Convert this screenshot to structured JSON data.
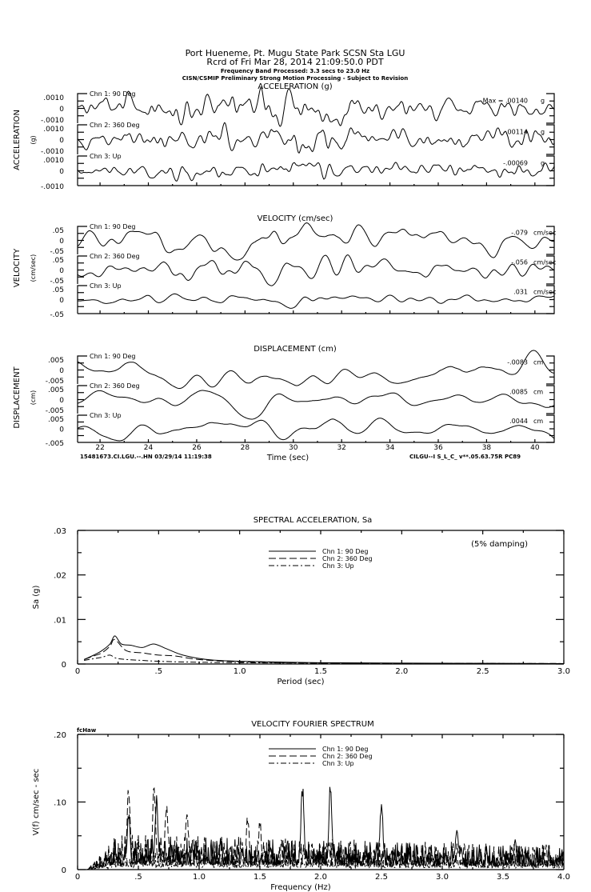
{
  "header": {
    "line1": "Port Hueneme, Pt. Mugu State Park    SCSN Sta LGU",
    "line2": "Rcrd of Fri Mar 28, 2014 21:09:50.0 PDT",
    "line3": "Frequency Band Processed: 3.3 secs to 23.0 Hz",
    "line4": "CISN/CSMIP Preliminary Strong Motion Processing - Subject to Revision"
  },
  "time_series": {
    "x_ticks": [
      "22",
      "24",
      "26",
      "28",
      "30",
      "32",
      "34",
      "36",
      "38",
      "40"
    ],
    "x_tick_values": [
      22,
      24,
      26,
      28,
      30,
      32,
      34,
      36,
      38,
      40
    ],
    "x_range": [
      21.07,
      40.8
    ],
    "xlabel": "Time (sec)",
    "footer_left": "15481673.CI.LGU.--.HN 03/29/14 11:19:38",
    "footer_right": "CILGU--I  S_L_C_  v**.05.63.75R PC89",
    "panels": [
      {
        "title": "ACCELERATION (g)",
        "side_label": "ACCELERATION",
        "unit_label": "(g)",
        "ticks": {
          "pos": ".0010",
          "zero": "0",
          "neg": "-.0010"
        },
        "full_scale": 0.001,
        "smooth": 2,
        "channels": [
          {
            "label": "Chn 1: 90 Deg",
            "peak_text": "Max = .00140",
            "peak": 0.0014,
            "unit": "g"
          },
          {
            "label": "Chn 2: 360 Deg",
            "peak_text": "-.00114",
            "peak": 0.00114,
            "unit": "g"
          },
          {
            "label": "Chn 3: Up",
            "peak_text": "-.00069",
            "peak": 0.00069,
            "unit": "g"
          }
        ]
      },
      {
        "title": "VELOCITY (cm/sec)",
        "side_label": "VELOCITY",
        "unit_label": "(cm/sec)",
        "ticks": {
          "pos": ".05",
          "zero": "0",
          "neg": "-.05"
        },
        "full_scale": 0.05,
        "smooth": 5,
        "channels": [
          {
            "label": "Chn 1: 90 Deg",
            "peak_text": "-.079",
            "peak": 0.079,
            "unit": "cm/sec"
          },
          {
            "label": "Chn 2: 360 Deg",
            "peak_text": "-.056",
            "peak": 0.056,
            "unit": "cm/sec"
          },
          {
            "label": "Chn 3: Up",
            "peak_text": ".031",
            "peak": 0.031,
            "unit": "cm/sec"
          }
        ]
      },
      {
        "title": "DISPLACEMENT (cm)",
        "side_label": "DISPLACEMENT",
        "unit_label": "(cm)",
        "ticks": {
          "pos": ".005",
          "zero": "0",
          "neg": "-.005"
        },
        "full_scale": 0.005,
        "smooth": 10,
        "channels": [
          {
            "label": "Chn 1: 90 Deg",
            "peak_text": "-.0083",
            "peak": 0.0083,
            "unit": "cm"
          },
          {
            "label": "Chn 2: 360 Deg",
            "peak_text": ".0085",
            "peak": 0.0085,
            "unit": "cm"
          },
          {
            "label": "Chn 3: Up",
            "peak_text": ".0044",
            "peak": 0.0044,
            "unit": "cm"
          }
        ]
      }
    ]
  },
  "chart_data": [
    {
      "type": "line",
      "title": "SPECTRAL ACCELERATION, Sa",
      "annotation": "(5% damping)",
      "xlabel": "Period (sec)",
      "ylabel": "Sa (g)",
      "xlim": [
        0,
        3.0
      ],
      "ylim": [
        0,
        0.03
      ],
      "x_ticks": [
        0,
        0.5,
        1.0,
        1.5,
        2.0,
        2.5,
        3.0
      ],
      "x_tick_labels": [
        "0",
        ".5",
        "1.0",
        "1.5",
        "2.0",
        "2.5",
        "3.0"
      ],
      "y_ticks": [
        0,
        0.01,
        0.02,
        0.03
      ],
      "y_tick_labels": [
        "0",
        ".01",
        ".02",
        ".03"
      ],
      "legend_position": "top-center",
      "series": [
        {
          "name": "Chn 1: 90 Deg",
          "style": "solid",
          "x": [
            0.04,
            0.1,
            0.15,
            0.2,
            0.23,
            0.27,
            0.33,
            0.4,
            0.47,
            0.55,
            0.65,
            0.8,
            1.0,
            1.5,
            2.0,
            2.5,
            3.0
          ],
          "y": [
            0.001,
            0.002,
            0.003,
            0.0045,
            0.0063,
            0.0045,
            0.0042,
            0.0037,
            0.0045,
            0.0034,
            0.002,
            0.001,
            0.0006,
            0.0003,
            0.0002,
            0.00015,
            0.0001
          ]
        },
        {
          "name": "Chn 2: 360 Deg",
          "style": "dashed",
          "x": [
            0.04,
            0.1,
            0.15,
            0.2,
            0.23,
            0.3,
            0.4,
            0.5,
            0.6,
            0.75,
            1.0,
            1.5,
            2.0,
            3.0
          ],
          "y": [
            0.001,
            0.0018,
            0.0025,
            0.004,
            0.0055,
            0.003,
            0.0025,
            0.002,
            0.0018,
            0.001,
            0.0005,
            0.0002,
            0.00015,
            0.0001
          ]
        },
        {
          "name": "Chn 3: Up",
          "style": "dash-dot",
          "x": [
            0.04,
            0.1,
            0.15,
            0.2,
            0.25,
            0.4,
            0.6,
            1.0,
            1.5,
            3.0
          ],
          "y": [
            0.0008,
            0.0012,
            0.0015,
            0.002,
            0.0012,
            0.0008,
            0.0005,
            0.0003,
            0.0002,
            0.0001
          ]
        }
      ]
    },
    {
      "type": "line",
      "title": "VELOCITY FOURIER SPECTRUM",
      "corner_label": "fcHaw",
      "xlabel": "Frequency (Hz)",
      "ylabel": "V(f)    cm/sec - sec",
      "xlim": [
        0,
        4.0
      ],
      "ylim": [
        0,
        0.2
      ],
      "x_ticks": [
        0,
        0.5,
        1.0,
        1.5,
        2.0,
        2.5,
        3.0,
        3.5,
        4.0
      ],
      "x_tick_labels": [
        "0",
        ".5",
        "1.0",
        "1.5",
        "2.0",
        "2.5",
        "3.0",
        "3.5",
        "4.0"
      ],
      "y_ticks": [
        0,
        0.1,
        0.2
      ],
      "y_tick_labels": [
        "0",
        ".10",
        ".20"
      ],
      "legend_position": "top-center",
      "series": [
        {
          "name": "Chn 1: 90 Deg",
          "style": "solid",
          "base_level": 0.03,
          "peaks": [
            [
              0.42,
              0.09
            ],
            [
              0.65,
              0.11
            ],
            [
              1.85,
              0.135
            ],
            [
              2.08,
              0.138
            ],
            [
              2.5,
              0.11
            ],
            [
              3.12,
              0.068
            ],
            [
              3.6,
              0.045
            ]
          ]
        },
        {
          "name": "Chn 2: 360 Deg",
          "style": "dashed",
          "base_level": 0.032,
          "peaks": [
            [
              0.42,
              0.13
            ],
            [
              0.63,
              0.135
            ],
            [
              0.73,
              0.105
            ],
            [
              0.9,
              0.09
            ],
            [
              1.4,
              0.085
            ],
            [
              1.5,
              0.075
            ]
          ]
        },
        {
          "name": "Chn 3: Up",
          "style": "dash-dot",
          "base_level": 0.015,
          "peaks": [
            [
              0.5,
              0.05
            ],
            [
              0.9,
              0.035
            ]
          ]
        }
      ]
    }
  ]
}
